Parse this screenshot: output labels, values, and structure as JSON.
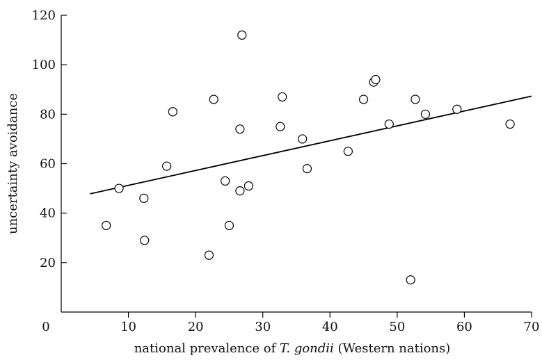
{
  "chart_data": {
    "type": "scatter",
    "title": "",
    "xlabel_parts": [
      {
        "text": "national prevalence of ",
        "italic": false
      },
      {
        "text": "T. gondii",
        "italic": true
      },
      {
        "text": " (Western nations)",
        "italic": false
      }
    ],
    "ylabel": "uncertainty avoidance",
    "xlim": [
      0,
      70
    ],
    "ylim": [
      0,
      120
    ],
    "xticks": [
      10,
      20,
      30,
      40,
      50,
      60,
      70
    ],
    "yticks": [
      20,
      40,
      60,
      80,
      100,
      120
    ],
    "origin_label": "0",
    "grid": false,
    "legend": "none",
    "points": [
      {
        "x": 6.7,
        "y": 35
      },
      {
        "x": 8.6,
        "y": 50
      },
      {
        "x": 12.3,
        "y": 46
      },
      {
        "x": 12.4,
        "y": 29
      },
      {
        "x": 15.7,
        "y": 59
      },
      {
        "x": 16.6,
        "y": 81
      },
      {
        "x": 22.0,
        "y": 23
      },
      {
        "x": 22.7,
        "y": 86
      },
      {
        "x": 24.4,
        "y": 53
      },
      {
        "x": 25.0,
        "y": 35
      },
      {
        "x": 26.6,
        "y": 49
      },
      {
        "x": 26.6,
        "y": 74
      },
      {
        "x": 26.9,
        "y": 112
      },
      {
        "x": 27.9,
        "y": 51
      },
      {
        "x": 32.6,
        "y": 75
      },
      {
        "x": 32.9,
        "y": 87
      },
      {
        "x": 35.9,
        "y": 70
      },
      {
        "x": 36.6,
        "y": 58
      },
      {
        "x": 42.7,
        "y": 65
      },
      {
        "x": 45.0,
        "y": 86
      },
      {
        "x": 46.5,
        "y": 93
      },
      {
        "x": 46.8,
        "y": 94
      },
      {
        "x": 48.8,
        "y": 76
      },
      {
        "x": 52.0,
        "y": 13
      },
      {
        "x": 52.7,
        "y": 86
      },
      {
        "x": 54.2,
        "y": 80
      },
      {
        "x": 58.9,
        "y": 82
      },
      {
        "x": 66.8,
        "y": 76
      }
    ],
    "trendline": {
      "x": [
        4.3,
        70.0
      ],
      "y": [
        47.8,
        87.3
      ]
    }
  }
}
